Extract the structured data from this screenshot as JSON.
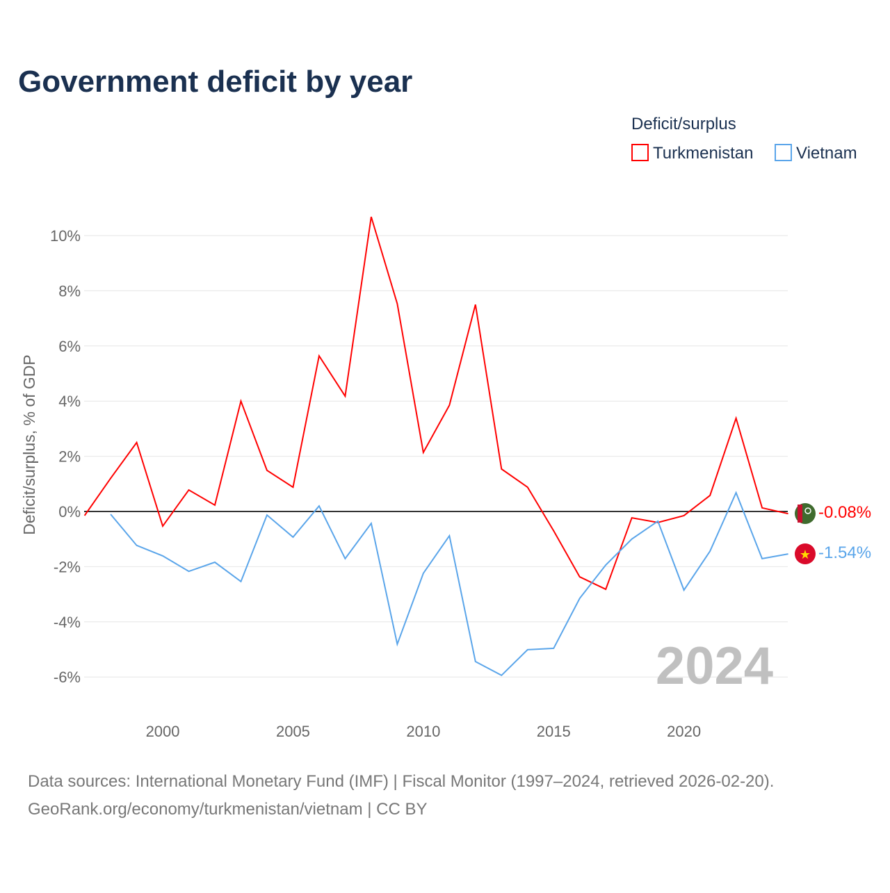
{
  "chart_data": {
    "type": "line",
    "title": "Government deficit by year",
    "ylabel": "Deficit/surplus, % of GDP",
    "xlabel": "",
    "legend_title": "Deficit/surplus",
    "legend_position": "top-right",
    "ylim": [
      -7,
      11
    ],
    "xlim": [
      1997,
      2024
    ],
    "yticks": [
      10,
      8,
      6,
      4,
      2,
      0,
      -2,
      -4,
      -6
    ],
    "ytick_labels": [
      "10%",
      "8%",
      "6%",
      "4%",
      "2%",
      "0%",
      "-2%",
      "-4%",
      "-6%"
    ],
    "xticks": [
      2000,
      2005,
      2010,
      2015,
      2020
    ],
    "xtick_labels": [
      "2000",
      "2005",
      "2010",
      "2015",
      "2020"
    ],
    "year_label": "2024",
    "grid": true,
    "series": [
      {
        "name": "Turkmenistan",
        "color": "#ff0000",
        "end_label": "-0.08%",
        "flag": "turkmenistan-flag",
        "x": [
          1997,
          1998,
          1999,
          2000,
          2001,
          2002,
          2003,
          2004,
          2005,
          2006,
          2007,
          2008,
          2009,
          2010,
          2011,
          2012,
          2013,
          2014,
          2015,
          2016,
          2017,
          2018,
          2019,
          2020,
          2021,
          2022,
          2023,
          2024
        ],
        "values": [
          -0.15,
          1.2,
          2.5,
          -0.53,
          0.78,
          0.23,
          4.0,
          1.49,
          0.88,
          5.64,
          4.18,
          10.68,
          7.53,
          2.14,
          3.85,
          7.5,
          1.54,
          0.88,
          -0.7,
          -2.37,
          -2.82,
          -0.23,
          -0.4,
          -0.15,
          0.58,
          3.38,
          0.13,
          -0.08
        ]
      },
      {
        "name": "Vietnam",
        "color": "#5aa5ea",
        "end_label": "-1.54%",
        "flag": "vietnam-flag",
        "x": [
          1998,
          1999,
          2000,
          2001,
          2002,
          2003,
          2004,
          2005,
          2006,
          2007,
          2008,
          2009,
          2010,
          2011,
          2012,
          2013,
          2014,
          2015,
          2016,
          2017,
          2018,
          2019,
          2020,
          2021,
          2022,
          2023,
          2024
        ],
        "values": [
          -0.1,
          -1.23,
          -1.61,
          -2.17,
          -1.84,
          -2.54,
          -0.13,
          -0.93,
          0.2,
          -1.71,
          -0.43,
          -4.81,
          -2.24,
          -0.88,
          -5.44,
          -5.94,
          -5.01,
          -4.96,
          -3.15,
          -1.94,
          -1.0,
          -0.35,
          -2.85,
          -1.44,
          0.68,
          -1.71,
          -1.54
        ]
      }
    ]
  },
  "footer": {
    "source": "Data sources: International Monetary Fund (IMF) | Fiscal Monitor (1997–2024, retrieved 2026-02-20).",
    "credit": "GeoRank.org/economy/turkmenistan/vietnam | CC BY"
  }
}
